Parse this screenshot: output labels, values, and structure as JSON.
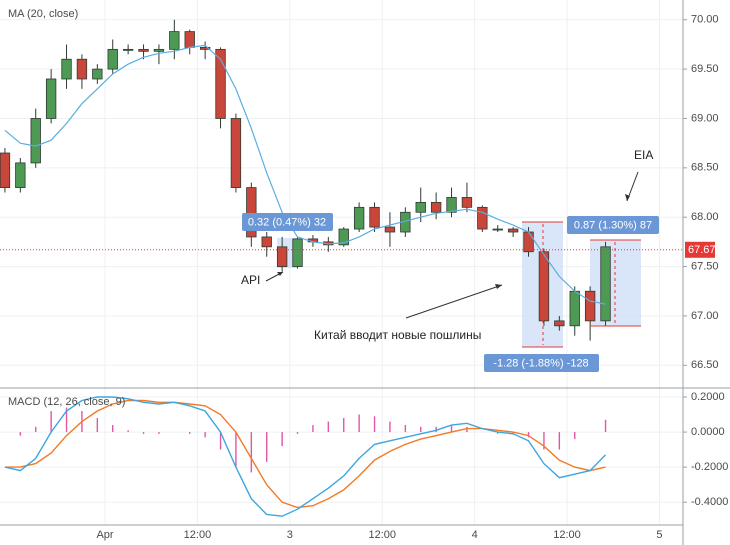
{
  "chart_data": [
    {
      "type": "candlestick",
      "title": "MA (20, close)",
      "x": [
        -13,
        -11,
        -9,
        -7,
        -5,
        -3,
        -1,
        1,
        3,
        5,
        7,
        9,
        11,
        13,
        15,
        17,
        19,
        21,
        23,
        25,
        27,
        29,
        31,
        33,
        35,
        37,
        39,
        41,
        43,
        45,
        47,
        49,
        51,
        53,
        55,
        57,
        59,
        61,
        63,
        65
      ],
      "open": [
        68.65,
        68.3,
        68.55,
        69.0,
        69.4,
        69.6,
        69.4,
        69.5,
        69.7,
        69.7,
        69.68,
        69.7,
        69.88,
        69.72,
        69.7,
        69.0,
        68.3,
        67.8,
        67.7,
        67.5,
        67.78,
        67.75,
        67.72,
        67.88,
        68.1,
        67.9,
        67.85,
        68.05,
        68.15,
        68.05,
        68.2,
        68.1,
        67.88,
        67.88,
        67.85,
        67.65,
        66.95,
        66.9,
        67.25,
        66.95
      ],
      "high": [
        68.7,
        68.6,
        69.1,
        69.5,
        69.75,
        69.65,
        69.55,
        69.8,
        69.75,
        69.75,
        69.75,
        70.0,
        69.9,
        69.78,
        69.72,
        69.05,
        68.35,
        67.85,
        67.8,
        67.8,
        67.82,
        67.8,
        67.9,
        68.15,
        68.15,
        68.05,
        68.1,
        68.3,
        68.25,
        68.3,
        68.35,
        68.12,
        67.92,
        67.9,
        67.9,
        67.68,
        67.0,
        67.3,
        67.3,
        67.75
      ],
      "low": [
        68.25,
        68.25,
        68.5,
        68.95,
        69.3,
        69.3,
        69.35,
        69.45,
        69.65,
        69.6,
        69.55,
        69.6,
        69.65,
        69.6,
        68.9,
        68.25,
        67.7,
        67.6,
        67.45,
        67.48,
        67.7,
        67.65,
        67.7,
        67.85,
        67.85,
        67.7,
        67.8,
        67.95,
        67.98,
        68.0,
        68.05,
        67.85,
        67.85,
        67.8,
        67.6,
        66.9,
        66.85,
        66.8,
        66.75,
        66.9
      ],
      "close": [
        68.3,
        68.55,
        69.0,
        69.4,
        69.6,
        69.4,
        69.5,
        69.7,
        69.7,
        69.68,
        69.7,
        69.88,
        69.72,
        69.7,
        69.0,
        68.3,
        67.8,
        67.7,
        67.5,
        67.78,
        67.75,
        67.72,
        67.88,
        68.1,
        67.9,
        67.85,
        68.05,
        68.15,
        68.05,
        68.2,
        68.1,
        67.88,
        67.88,
        67.85,
        67.65,
        66.95,
        66.9,
        67.25,
        66.95,
        67.7
      ],
      "up_color": "#4e9a55",
      "down_color": "#c9473a",
      "ma": {
        "color": "#5aaee0",
        "values": [
          68.88,
          68.75,
          68.72,
          68.78,
          68.95,
          69.15,
          69.3,
          69.45,
          69.55,
          69.62,
          69.66,
          69.68,
          69.72,
          69.74,
          69.6,
          69.3,
          68.9,
          68.45,
          68.05,
          67.8,
          67.75,
          67.73,
          67.74,
          67.8,
          67.88,
          67.92,
          67.96,
          68.0,
          68.04,
          68.06,
          68.08,
          68.05,
          67.98,
          67.92,
          67.85,
          67.62,
          67.4,
          67.25,
          67.15,
          67.12
        ]
      },
      "last_price": 67.67,
      "last_price_color": "#e53935",
      "xlim": [
        -13.64,
        75.06
      ],
      "ylim": [
        66.27,
        70.2
      ],
      "yticks": [
        {
          "value": 66.5,
          "label": "66.50"
        },
        {
          "value": 67,
          "label": "67.00"
        },
        {
          "value": 67.5,
          "label": "67.50"
        },
        {
          "value": 68,
          "label": "68.00"
        },
        {
          "value": 68.5,
          "label": "68.50"
        },
        {
          "value": 69,
          "label": "69.00"
        },
        {
          "value": 69.5,
          "label": "69.50"
        },
        {
          "value": 70,
          "label": "70.00"
        }
      ],
      "grid": true,
      "measures": [
        "0.32 (0.47%) 32",
        "-1.28 (-1.88%) -128",
        "0.87 (1.30%) 87"
      ],
      "annotations": [
        "API",
        "Китай вводит новые пошлины",
        "EIA"
      ]
    },
    {
      "type": "macd",
      "title": "MACD (12, 26, close, 9)",
      "x": [
        -13,
        -11,
        -9,
        -7,
        -5,
        -3,
        -1,
        1,
        3,
        5,
        7,
        9,
        11,
        13,
        15,
        17,
        19,
        21,
        23,
        25,
        27,
        29,
        31,
        33,
        35,
        37,
        39,
        41,
        43,
        45,
        47,
        49,
        51,
        53,
        55,
        57,
        59,
        61,
        63,
        65
      ],
      "macd": {
        "color": "#3da5e0",
        "values": [
          -0.2,
          -0.22,
          -0.15,
          0.0,
          0.12,
          0.18,
          0.2,
          0.2,
          0.19,
          0.17,
          0.16,
          0.17,
          0.15,
          0.12,
          0.0,
          -0.2,
          -0.38,
          -0.47,
          -0.48,
          -0.44,
          -0.38,
          -0.32,
          -0.25,
          -0.15,
          -0.07,
          -0.05,
          -0.03,
          -0.01,
          0.01,
          0.04,
          0.05,
          0.02,
          0.0,
          -0.01,
          -0.05,
          -0.18,
          -0.26,
          -0.24,
          -0.22,
          -0.13
        ]
      },
      "signal": {
        "color": "#f37a26",
        "values": [
          -0.2,
          -0.2,
          -0.18,
          -0.12,
          -0.02,
          0.06,
          0.12,
          0.16,
          0.18,
          0.18,
          0.17,
          0.17,
          0.16,
          0.15,
          0.1,
          0.0,
          -0.15,
          -0.3,
          -0.4,
          -0.43,
          -0.42,
          -0.38,
          -0.33,
          -0.25,
          -0.16,
          -0.11,
          -0.07,
          -0.04,
          -0.02,
          0.0,
          0.02,
          0.02,
          0.01,
          0.0,
          -0.02,
          -0.08,
          -0.16,
          -0.2,
          -0.22,
          -0.2
        ]
      },
      "histogram": {
        "color": "#e056a8",
        "values": [
          0,
          -0.02,
          0.03,
          0.12,
          0.14,
          0.12,
          0.08,
          0.04,
          0.01,
          -0.01,
          -0.01,
          0,
          -0.01,
          -0.03,
          -0.1,
          -0.2,
          -0.23,
          -0.17,
          -0.08,
          -0.01,
          0.04,
          0.06,
          0.08,
          0.1,
          0.09,
          0.06,
          0.04,
          0.03,
          0.03,
          0.04,
          0.03,
          0,
          -0.01,
          -0.01,
          -0.03,
          -0.1,
          -0.1,
          -0.04,
          0,
          0.07
        ]
      },
      "xlim": [
        -13.64,
        75.06
      ],
      "ylim": [
        -0.53,
        0.24
      ],
      "yticks": [
        {
          "value": -0.4,
          "label": "-0.4000"
        },
        {
          "value": -0.2,
          "label": "-0.2000"
        },
        {
          "value": 0,
          "label": "0.0000"
        },
        {
          "value": 0.2,
          "label": "0.2000"
        }
      ],
      "xticks": [
        {
          "value": 0,
          "label": "Apr"
        },
        {
          "value": 12,
          "label": "12:00"
        },
        {
          "value": 24,
          "label": "3"
        },
        {
          "value": 36,
          "label": "12:00"
        },
        {
          "value": 48,
          "label": "4"
        },
        {
          "value": 60,
          "label": "12:00"
        },
        {
          "value": 72,
          "label": "5"
        }
      ],
      "grid": true
    }
  ]
}
